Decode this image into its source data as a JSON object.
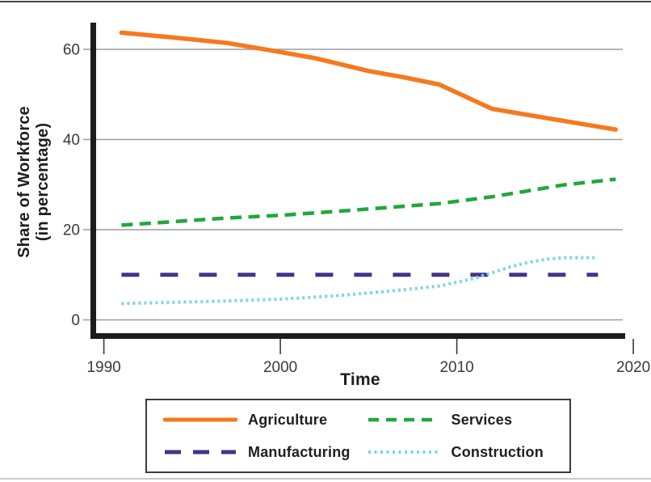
{
  "page": {
    "background": "#ffffff",
    "top_edge_color": "#474747",
    "bottom_edge_color": "#c9c9c9"
  },
  "chart_data": {
    "type": "line",
    "title": "",
    "xlabel": "Time",
    "ylabel": "Share of Workforce (in percentage)",
    "ylabel_lines": [
      "Share of Workforce",
      "(in percentage)"
    ],
    "x_ticks": [
      1990,
      2000,
      2010,
      2020
    ],
    "y_ticks": [
      0,
      20,
      40,
      60
    ],
    "xlim": [
      1989.6,
      2020.3
    ],
    "ylim": [
      0,
      66
    ],
    "grid": "horizontal",
    "legend_position": "bottom",
    "colors": {
      "grid": "#9b9b9b",
      "axis": "#1c1c1c",
      "tick_mark": "#3a3a3a",
      "tick_text": "#3a3a3a",
      "label_text": "#1e1e1e",
      "legend_border": "#3c3c3c"
    },
    "series": [
      {
        "name": "Agriculture",
        "color": "#f5791f",
        "style": "solid",
        "width": 5.5,
        "points": [
          [
            1991,
            63.7
          ],
          [
            1994,
            62.6
          ],
          [
            1997,
            61.4
          ],
          [
            2000,
            59.4
          ],
          [
            2002,
            58.0
          ],
          [
            2005,
            55.2
          ],
          [
            2007,
            53.8
          ],
          [
            2009,
            52.2
          ],
          [
            2012,
            46.8
          ],
          [
            2015,
            44.8
          ],
          [
            2019,
            42.2
          ]
        ]
      },
      {
        "name": "Services",
        "color": "#21a73c",
        "style": "dashed",
        "width": 4.5,
        "points": [
          [
            1991,
            21.0
          ],
          [
            1994,
            21.8
          ],
          [
            1997,
            22.6
          ],
          [
            2000,
            23.2
          ],
          [
            2003,
            24.0
          ],
          [
            2006,
            24.9
          ],
          [
            2009,
            25.8
          ],
          [
            2012,
            27.3
          ],
          [
            2014,
            28.6
          ],
          [
            2016,
            29.9
          ],
          [
            2019,
            31.2
          ]
        ]
      },
      {
        "name": "Manufacturing",
        "color": "#443389",
        "style": "long-dash",
        "width": 5,
        "points": [
          [
            1991,
            10
          ],
          [
            2018,
            10
          ]
        ]
      },
      {
        "name": "Construction",
        "color": "#7ed5e2",
        "style": "dotted",
        "width": 4,
        "points": [
          [
            1991,
            3.6
          ],
          [
            1994,
            3.9
          ],
          [
            1997,
            4.2
          ],
          [
            2000,
            4.6
          ],
          [
            2003,
            5.3
          ],
          [
            2006,
            6.3
          ],
          [
            2009,
            7.5
          ],
          [
            2011,
            9.2
          ],
          [
            2013,
            11.7
          ],
          [
            2014,
            12.7
          ],
          [
            2015,
            13.4
          ],
          [
            2016,
            13.8
          ],
          [
            2018,
            13.8
          ]
        ]
      }
    ]
  }
}
